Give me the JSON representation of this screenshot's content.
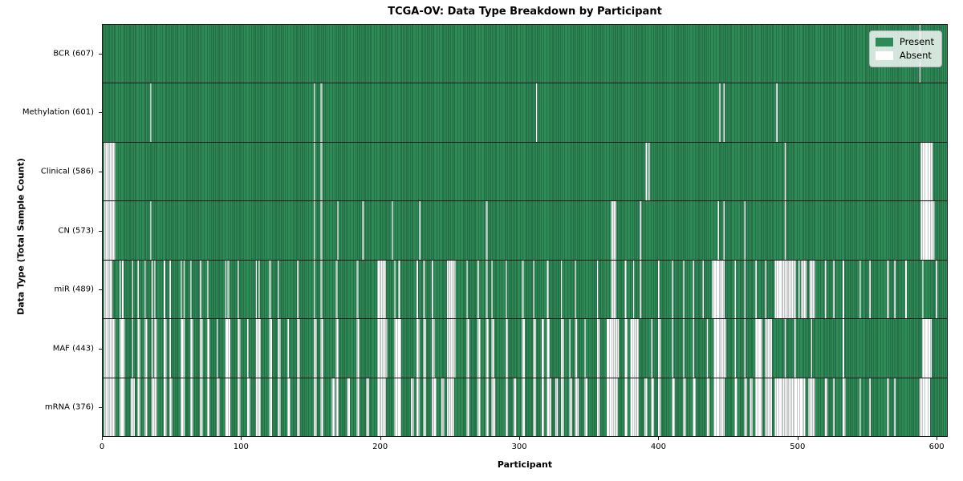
{
  "chart_data": {
    "type": "heatmap",
    "title": "TCGA-OV: Data Type Breakdown by Participant",
    "xlabel": "Participant",
    "ylabel": "Data Type (Total Sample Count)",
    "x_ticks": [
      0,
      100,
      200,
      300,
      400,
      500,
      600
    ],
    "n_participants": 608,
    "grid": false,
    "legend_position": "upper right",
    "colors": {
      "present": "#2e8b57",
      "absent": "#ffffff"
    },
    "legend": [
      {
        "label": "Present",
        "color": "#2e8b57"
      },
      {
        "label": "Absent",
        "color": "#ffffff"
      }
    ],
    "rows": [
      {
        "label": "BCR (607)",
        "data_type": "BCR",
        "present_count": 607,
        "absent_ranges": [
          [
            588,
            588
          ]
        ]
      },
      {
        "label": "Methylation (601)",
        "data_type": "Methylation",
        "present_count": 601,
        "absent_ranges": [
          [
            34,
            34
          ],
          [
            152,
            152
          ],
          [
            157,
            157
          ],
          [
            312,
            312
          ],
          [
            444,
            444
          ],
          [
            447,
            447
          ],
          [
            485,
            485
          ]
        ]
      },
      {
        "label": "Clinical (586)",
        "data_type": "Clinical",
        "present_count": 586,
        "absent_ranges": [
          [
            1,
            8
          ],
          [
            152,
            152
          ],
          [
            157,
            157
          ],
          [
            391,
            391
          ],
          [
            393,
            393
          ],
          [
            491,
            491
          ],
          [
            589,
            597
          ]
        ]
      },
      {
        "label": "CN (573)",
        "data_type": "CN",
        "present_count": 573,
        "absent_ranges": [
          [
            1,
            8
          ],
          [
            34,
            34
          ],
          [
            152,
            152
          ],
          [
            157,
            157
          ],
          [
            169,
            169
          ],
          [
            187,
            187
          ],
          [
            208,
            208
          ],
          [
            228,
            228
          ],
          [
            276,
            276
          ],
          [
            366,
            369
          ],
          [
            387,
            387
          ],
          [
            443,
            443
          ],
          [
            447,
            447
          ],
          [
            462,
            462
          ],
          [
            491,
            491
          ],
          [
            589,
            598
          ]
        ]
      },
      {
        "label": "miR (489)",
        "data_type": "miR",
        "present_count": 489,
        "absent_ranges": [
          [
            1,
            6
          ],
          [
            12,
            12
          ],
          [
            14,
            14
          ],
          [
            21,
            21
          ],
          [
            25,
            25
          ],
          [
            30,
            30
          ],
          [
            35,
            35
          ],
          [
            37,
            37
          ],
          [
            44,
            44
          ],
          [
            48,
            48
          ],
          [
            56,
            56
          ],
          [
            58,
            58
          ],
          [
            63,
            63
          ],
          [
            70,
            70
          ],
          [
            75,
            75
          ],
          [
            88,
            88
          ],
          [
            90,
            90
          ],
          [
            97,
            97
          ],
          [
            110,
            110
          ],
          [
            112,
            112
          ],
          [
            120,
            120
          ],
          [
            126,
            126
          ],
          [
            140,
            140
          ],
          [
            152,
            152
          ],
          [
            157,
            157
          ],
          [
            168,
            168
          ],
          [
            183,
            183
          ],
          [
            198,
            203
          ],
          [
            210,
            210
          ],
          [
            213,
            213
          ],
          [
            226,
            226
          ],
          [
            231,
            231
          ],
          [
            237,
            237
          ],
          [
            248,
            253
          ],
          [
            262,
            262
          ],
          [
            270,
            270
          ],
          [
            276,
            276
          ],
          [
            280,
            280
          ],
          [
            290,
            290
          ],
          [
            302,
            302
          ],
          [
            310,
            310
          ],
          [
            320,
            320
          ],
          [
            330,
            330
          ],
          [
            340,
            340
          ],
          [
            356,
            356
          ],
          [
            366,
            369
          ],
          [
            376,
            376
          ],
          [
            382,
            382
          ],
          [
            387,
            387
          ],
          [
            400,
            400
          ],
          [
            410,
            410
          ],
          [
            418,
            418
          ],
          [
            425,
            425
          ],
          [
            432,
            432
          ],
          [
            439,
            447
          ],
          [
            455,
            455
          ],
          [
            462,
            462
          ],
          [
            470,
            470
          ],
          [
            477,
            477
          ],
          [
            484,
            498
          ],
          [
            501,
            501
          ],
          [
            503,
            506
          ],
          [
            509,
            512
          ],
          [
            520,
            520
          ],
          [
            526,
            526
          ],
          [
            533,
            533
          ],
          [
            545,
            545
          ],
          [
            552,
            552
          ],
          [
            565,
            565
          ],
          [
            570,
            570
          ],
          [
            578,
            578
          ],
          [
            590,
            590
          ],
          [
            600,
            600
          ]
        ]
      },
      {
        "label": "MAF (443)",
        "data_type": "MAF",
        "present_count": 443,
        "absent_ranges": [
          [
            1,
            8
          ],
          [
            12,
            15
          ],
          [
            21,
            21
          ],
          [
            25,
            26
          ],
          [
            30,
            31
          ],
          [
            35,
            35
          ],
          [
            37,
            38
          ],
          [
            44,
            45
          ],
          [
            48,
            48
          ],
          [
            56,
            58
          ],
          [
            63,
            64
          ],
          [
            70,
            71
          ],
          [
            75,
            76
          ],
          [
            82,
            82
          ],
          [
            88,
            91
          ],
          [
            97,
            98
          ],
          [
            104,
            104
          ],
          [
            110,
            113
          ],
          [
            120,
            121
          ],
          [
            126,
            127
          ],
          [
            133,
            133
          ],
          [
            140,
            141
          ],
          [
            152,
            153
          ],
          [
            157,
            158
          ],
          [
            168,
            169
          ],
          [
            183,
            184
          ],
          [
            198,
            204
          ],
          [
            210,
            214
          ],
          [
            226,
            227
          ],
          [
            231,
            232
          ],
          [
            237,
            238
          ],
          [
            248,
            253
          ],
          [
            262,
            263
          ],
          [
            270,
            271
          ],
          [
            276,
            277
          ],
          [
            280,
            281
          ],
          [
            290,
            291
          ],
          [
            302,
            303
          ],
          [
            310,
            311
          ],
          [
            316,
            317
          ],
          [
            320,
            321
          ],
          [
            330,
            331
          ],
          [
            336,
            336
          ],
          [
            340,
            341
          ],
          [
            347,
            347
          ],
          [
            356,
            357
          ],
          [
            363,
            371
          ],
          [
            376,
            377
          ],
          [
            380,
            385
          ],
          [
            395,
            395
          ],
          [
            400,
            401
          ],
          [
            410,
            410
          ],
          [
            418,
            418
          ],
          [
            425,
            425
          ],
          [
            435,
            435
          ],
          [
            440,
            448
          ],
          [
            455,
            455
          ],
          [
            462,
            462
          ],
          [
            470,
            474
          ],
          [
            477,
            481
          ],
          [
            491,
            491
          ],
          [
            498,
            498
          ],
          [
            510,
            510
          ],
          [
            533,
            533
          ],
          [
            590,
            596
          ]
        ]
      },
      {
        "label": "mRNA (376)",
        "data_type": "mRNA",
        "present_count": 376,
        "absent_ranges": [
          [
            1,
            8
          ],
          [
            12,
            15
          ],
          [
            20,
            22
          ],
          [
            25,
            26
          ],
          [
            30,
            31
          ],
          [
            35,
            38
          ],
          [
            44,
            45
          ],
          [
            48,
            49
          ],
          [
            56,
            58
          ],
          [
            63,
            64
          ],
          [
            70,
            71
          ],
          [
            75,
            76
          ],
          [
            82,
            83
          ],
          [
            88,
            91
          ],
          [
            97,
            98
          ],
          [
            104,
            105
          ],
          [
            110,
            113
          ],
          [
            120,
            121
          ],
          [
            126,
            127
          ],
          [
            133,
            134
          ],
          [
            140,
            141
          ],
          [
            152,
            153
          ],
          [
            157,
            158
          ],
          [
            165,
            166
          ],
          [
            168,
            169
          ],
          [
            176,
            177
          ],
          [
            183,
            184
          ],
          [
            190,
            191
          ],
          [
            198,
            203
          ],
          [
            210,
            214
          ],
          [
            222,
            223
          ],
          [
            226,
            227
          ],
          [
            231,
            232
          ],
          [
            237,
            239
          ],
          [
            244,
            245
          ],
          [
            248,
            252
          ],
          [
            262,
            263
          ],
          [
            270,
            271
          ],
          [
            276,
            277
          ],
          [
            280,
            282
          ],
          [
            290,
            291
          ],
          [
            296,
            297
          ],
          [
            302,
            303
          ],
          [
            310,
            311
          ],
          [
            316,
            317
          ],
          [
            320,
            322
          ],
          [
            326,
            327
          ],
          [
            330,
            331
          ],
          [
            336,
            337
          ],
          [
            340,
            342
          ],
          [
            347,
            348
          ],
          [
            356,
            357
          ],
          [
            363,
            370
          ],
          [
            376,
            377
          ],
          [
            380,
            385
          ],
          [
            390,
            391
          ],
          [
            395,
            396
          ],
          [
            400,
            401
          ],
          [
            410,
            411
          ],
          [
            418,
            419
          ],
          [
            425,
            426
          ],
          [
            435,
            436
          ],
          [
            440,
            447
          ],
          [
            455,
            456
          ],
          [
            462,
            463
          ],
          [
            466,
            467
          ],
          [
            470,
            474
          ],
          [
            477,
            481
          ],
          [
            484,
            505
          ],
          [
            508,
            512
          ],
          [
            520,
            521
          ],
          [
            526,
            526
          ],
          [
            533,
            534
          ],
          [
            545,
            545
          ],
          [
            552,
            552
          ],
          [
            565,
            565
          ],
          [
            570,
            570
          ],
          [
            588,
            595
          ]
        ]
      }
    ]
  }
}
